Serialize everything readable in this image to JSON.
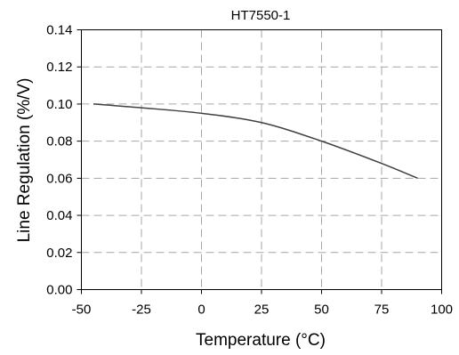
{
  "chart_data": {
    "type": "line",
    "title": "HT7550-1",
    "xlabel": "Temperature (°C)",
    "ylabel": "Line Regulation (%/V)",
    "xlim": [
      -50,
      100
    ],
    "ylim": [
      0,
      0.14
    ],
    "x_ticks": [
      -50,
      -25,
      0,
      25,
      50,
      75,
      100
    ],
    "y_ticks": [
      0.0,
      0.02,
      0.04,
      0.06,
      0.08,
      0.1,
      0.12,
      0.14
    ],
    "x_tick_labels": [
      "-50",
      "-25",
      "0",
      "25",
      "50",
      "75",
      "100"
    ],
    "y_tick_labels": [
      "0.00",
      "0.02",
      "0.04",
      "0.06",
      "0.08",
      "0.10",
      "0.12",
      "0.14"
    ],
    "grid": true,
    "series": [
      {
        "color": "#404040",
        "x": [
          -45,
          -25,
          0,
          25,
          50,
          75,
          90
        ],
        "y": [
          0.1,
          0.098,
          0.095,
          0.09,
          0.08,
          0.068,
          0.06
        ]
      }
    ]
  }
}
